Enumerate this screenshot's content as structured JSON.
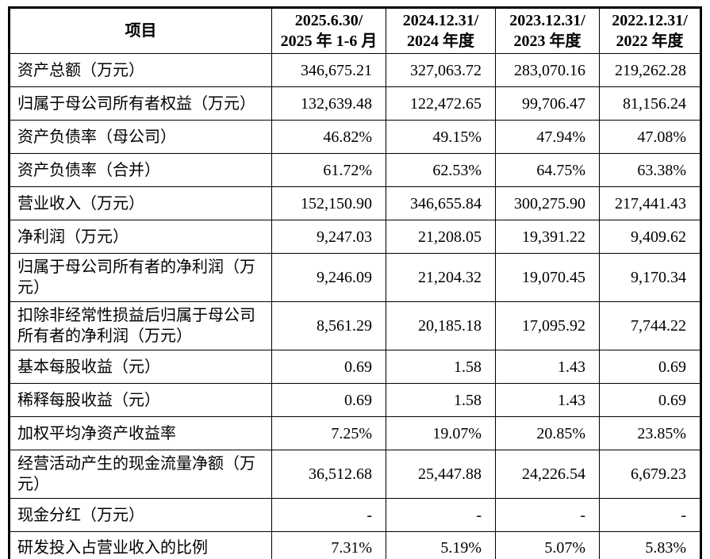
{
  "table": {
    "header": {
      "item_col": "项目",
      "period_cols": [
        {
          "line1": "2025.6.30/",
          "line2": "2025 年 1-6 月"
        },
        {
          "line1": "2024.12.31/",
          "line2": "2024 年度"
        },
        {
          "line1": "2023.12.31/",
          "line2": "2023 年度"
        },
        {
          "line1": "2022.12.31/",
          "line2": "2022 年度"
        }
      ]
    },
    "rows": [
      {
        "label": "资产总额（万元）",
        "values": [
          "346,675.21",
          "327,063.72",
          "283,070.16",
          "219,262.28"
        ]
      },
      {
        "label": "归属于母公司所有者权益（万元）",
        "values": [
          "132,639.48",
          "122,472.65",
          "99,706.47",
          "81,156.24"
        ]
      },
      {
        "label": "资产负债率（母公司）",
        "values": [
          "46.82%",
          "49.15%",
          "47.94%",
          "47.08%"
        ]
      },
      {
        "label": "资产负债率（合并）",
        "values": [
          "61.72%",
          "62.53%",
          "64.75%",
          "63.38%"
        ]
      },
      {
        "label": "营业收入（万元）",
        "values": [
          "152,150.90",
          "346,655.84",
          "300,275.90",
          "217,441.43"
        ]
      },
      {
        "label": "净利润（万元）",
        "values": [
          "9,247.03",
          "21,208.05",
          "19,391.22",
          "9,409.62"
        ]
      },
      {
        "label": "归属于母公司所有者的净利润（万元）",
        "values": [
          "9,246.09",
          "21,204.32",
          "19,070.45",
          "9,170.34"
        ]
      },
      {
        "label": "扣除非经常性损益后归属于母公司所有者的净利润（万元）",
        "values": [
          "8,561.29",
          "20,185.18",
          "17,095.92",
          "7,744.22"
        ]
      },
      {
        "label": "基本每股收益（元）",
        "values": [
          "0.69",
          "1.58",
          "1.43",
          "0.69"
        ]
      },
      {
        "label": "稀释每股收益（元）",
        "values": [
          "0.69",
          "1.58",
          "1.43",
          "0.69"
        ]
      },
      {
        "label": "加权平均净资产收益率",
        "values": [
          "7.25%",
          "19.07%",
          "20.85%",
          "23.85%"
        ]
      },
      {
        "label": "经营活动产生的现金流量净额（万元）",
        "values": [
          "36,512.68",
          "25,447.88",
          "24,226.54",
          "6,679.23"
        ]
      },
      {
        "label": "现金分红（万元）",
        "values": [
          "-",
          "-",
          "-",
          "-"
        ]
      },
      {
        "label": "研发投入占营业收入的比例",
        "values": [
          "7.31%",
          "5.19%",
          "5.07%",
          "5.83%"
        ]
      }
    ]
  }
}
